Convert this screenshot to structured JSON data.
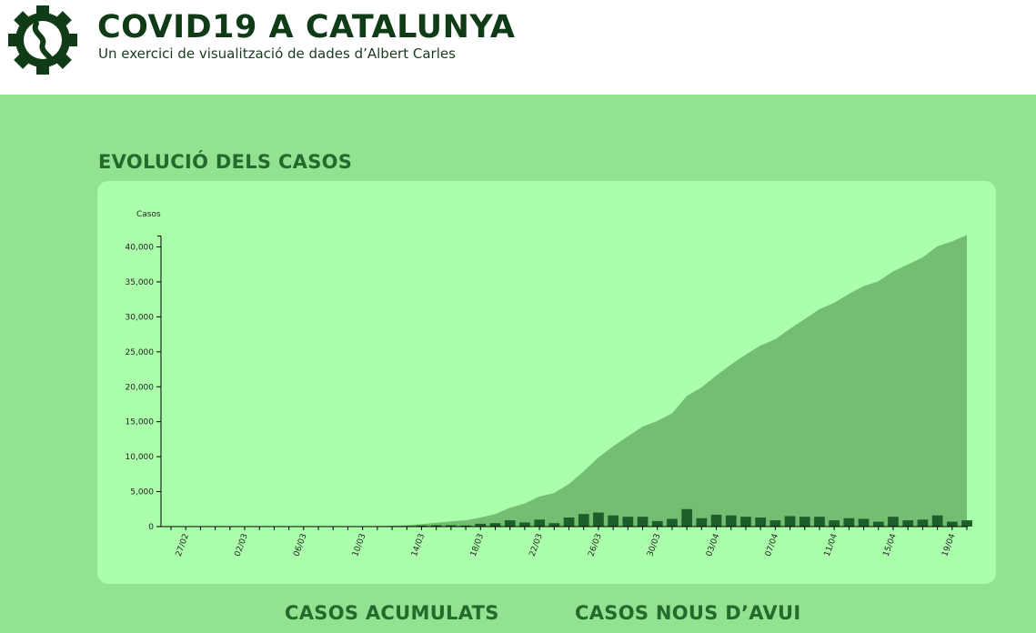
{
  "header": {
    "title": "COVID19 A CATALUNYA",
    "subtitle": "Un exercici de visualització de dades d’Albert Carles",
    "logo_icon": "gear-virus-logo-icon"
  },
  "sections": {
    "evolution_title": "EVOLUCIÓ DELS CASOS",
    "accumulated_title": "CASOS ACUMULATS",
    "new_today_title": "CASOS NOUS D’AVUI"
  },
  "colors": {
    "accent_dark": "#0f3b17",
    "area_fill": "#74be74",
    "bar_fill": "#1e5e2a",
    "page_bg": "#93e291",
    "panel_bg": "#abffab"
  },
  "chart_data": {
    "type": "area",
    "title": "",
    "xlabel": "",
    "ylabel": "Casos",
    "ylim": [
      0,
      40000
    ],
    "yticks": [
      0,
      5000,
      10000,
      15000,
      20000,
      25000,
      30000,
      35000,
      40000
    ],
    "ytick_labels": [
      "0",
      "5,000",
      "10,000",
      "15,000",
      "20,000",
      "25,000",
      "30,000",
      "35,000",
      "40,000"
    ],
    "x_tick_labels": [
      "27/02",
      "02/03",
      "06/03",
      "10/03",
      "14/03",
      "18/03",
      "22/03",
      "26/03",
      "30/03",
      "03/04",
      "07/04",
      "11/04",
      "15/04",
      "19/04"
    ],
    "x": [
      "26/02",
      "27/02",
      "28/02",
      "29/02",
      "01/03",
      "02/03",
      "03/03",
      "04/03",
      "05/03",
      "06/03",
      "07/03",
      "08/03",
      "09/03",
      "10/03",
      "11/03",
      "12/03",
      "13/03",
      "14/03",
      "15/03",
      "16/03",
      "17/03",
      "18/03",
      "19/03",
      "20/03",
      "21/03",
      "22/03",
      "23/03",
      "24/03",
      "25/03",
      "26/03",
      "27/03",
      "28/03",
      "29/03",
      "30/03",
      "31/03",
      "01/04",
      "02/04",
      "03/04",
      "04/04",
      "05/04",
      "06/04",
      "07/04",
      "08/04",
      "09/04",
      "10/04",
      "11/04",
      "12/04",
      "13/04",
      "14/04",
      "15/04",
      "16/04",
      "17/04",
      "18/04",
      "19/04",
      "20/04"
    ],
    "series": [
      {
        "name": "Casos acumulats",
        "type": "area",
        "values": [
          1,
          1,
          2,
          3,
          4,
          5,
          6,
          8,
          10,
          12,
          15,
          20,
          30,
          50,
          80,
          120,
          200,
          350,
          550,
          750,
          900,
          1300,
          1800,
          2700,
          3300,
          4300,
          4800,
          6100,
          7900,
          9900,
          11500,
          12900,
          14300,
          15100,
          16200,
          18700,
          19900,
          21600,
          23200,
          24600,
          25900,
          26800,
          28300,
          29700,
          31100,
          32000,
          33300,
          34400,
          35100,
          36500,
          37500,
          38500,
          40100,
          40800,
          41700
        ]
      },
      {
        "name": "Casos nous",
        "type": "bar",
        "values": [
          0,
          0,
          1,
          1,
          1,
          1,
          1,
          2,
          2,
          2,
          3,
          5,
          10,
          20,
          30,
          40,
          80,
          150,
          200,
          200,
          150,
          400,
          500,
          900,
          600,
          1000,
          500,
          1300,
          1800,
          2000,
          1600,
          1400,
          1400,
          800,
          1100,
          2500,
          1200,
          1700,
          1600,
          1400,
          1300,
          900,
          1500,
          1400,
          1400,
          900,
          1200,
          1100,
          700,
          1400,
          900,
          1000,
          1600,
          700,
          900
        ]
      }
    ],
    "grid": false,
    "legend": "none"
  }
}
